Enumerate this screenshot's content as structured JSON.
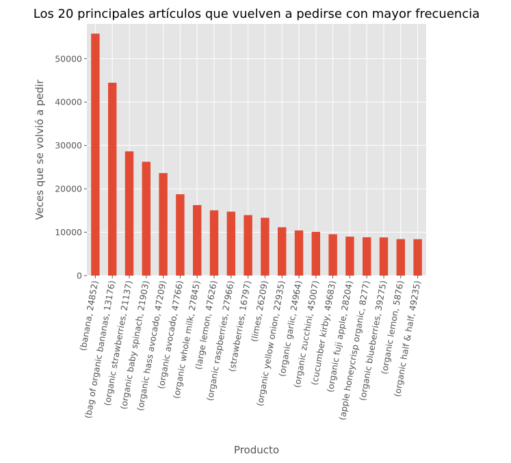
{
  "chart_data": {
    "type": "bar",
    "title": "Los 20 principales artículos que vuelven a pedirse con mayor frecuencia",
    "xlabel": "Producto",
    "ylabel": "Veces que se volvió a pedir",
    "categories": [
      "(banana, 24852)",
      "(bag of organic bananas, 13176)",
      "(organic strawberries, 21137)",
      "(organic baby spinach, 21903)",
      "(organic hass avocado, 47209)",
      "(organic avocado, 47766)",
      "(organic whole milk, 27845)",
      "(large lemon, 47626)",
      "(organic raspberries, 27966)",
      "(strawberries, 16797)",
      "(limes, 26209)",
      "(organic yellow onion, 22935)",
      "(organic garlic, 24964)",
      "(organic zucchini, 45007)",
      "(cucumber kirby, 49683)",
      "(organic fuji apple, 28204)",
      "(apple honeycrisp organic, 8277)",
      "(organic blueberries, 39275)",
      "(organic lemon, 5876)",
      "(organic half & half, 49235)"
    ],
    "values": [
      55763,
      44450,
      28639,
      26233,
      23629,
      18743,
      16251,
      15044,
      14748,
      13945,
      13327,
      11145,
      10411,
      10076,
      9538,
      8989,
      8836,
      8799,
      8412,
      8389
    ],
    "ylim": [
      0,
      58000
    ],
    "yticks": [
      0,
      10000,
      20000,
      30000,
      40000,
      50000
    ],
    "grid": true,
    "legend": "none",
    "bar_color": "#E24A33",
    "plot_background": "#E5E5E5",
    "grid_color": "#FFFFFF"
  }
}
